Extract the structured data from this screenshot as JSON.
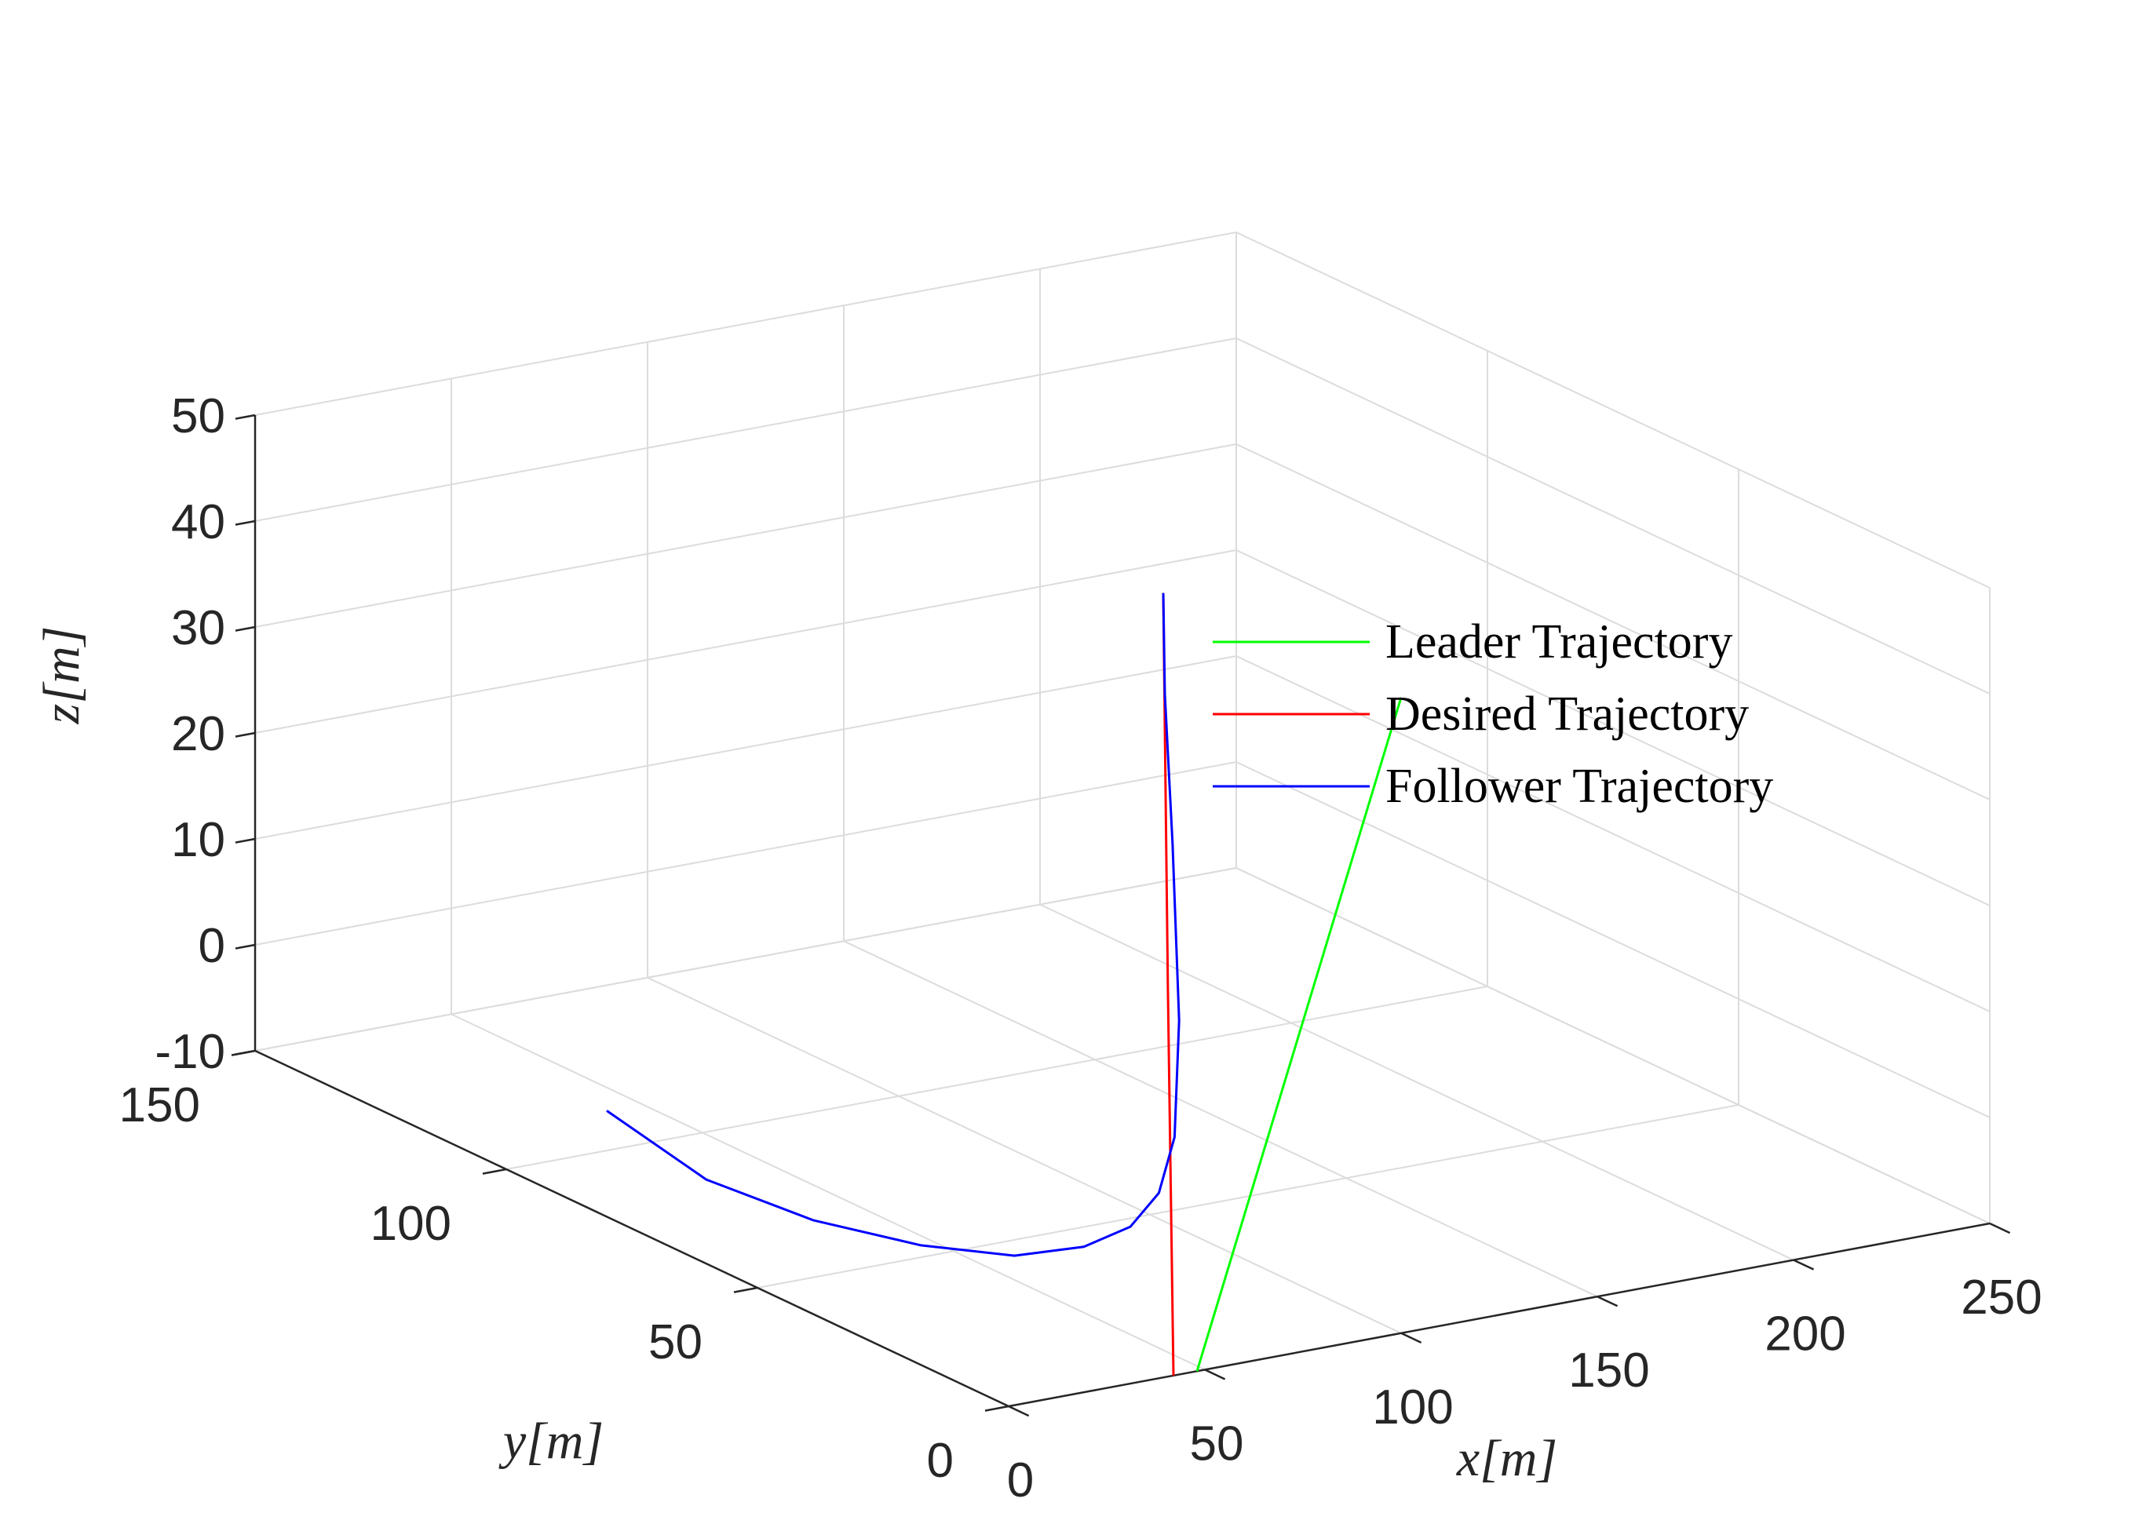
{
  "chart_data": {
    "type": "line",
    "title": "",
    "xlabel": "x[m]",
    "ylabel": "y[m]",
    "zlabel": "z[m]",
    "xlim": [
      0,
      250
    ],
    "ylim": [
      0,
      150
    ],
    "zlim": [
      -10,
      50
    ],
    "grid": true,
    "legend_placement": "center-right",
    "x_ticks": [
      "0",
      "50",
      "100",
      "150",
      "200",
      "250"
    ],
    "y_ticks": [
      "0",
      "50",
      "100",
      "150"
    ],
    "z_ticks": [
      "-10",
      "0",
      "10",
      "20",
      "30",
      "40",
      "50"
    ],
    "series": [
      {
        "name": "Leader Trajectory",
        "color": "#00ff00",
        "x": [
          48,
          100
        ],
        "y": [
          0,
          0
        ],
        "z": [
          -10,
          50
        ]
      },
      {
        "name": "Desired Trajectory",
        "color": "#ff0000",
        "x": [
          42,
          70,
          97
        ],
        "y": [
          0,
          23,
          45
        ],
        "z": [
          -10,
          20,
          50
        ]
      },
      {
        "name": "Follower Trajectory",
        "color": "#0000ff",
        "x": [
          0,
          10,
          22,
          34,
          45,
          55,
          63,
          69,
          73,
          78,
          84,
          91,
          97
        ],
        "y": [
          80,
          68,
          56,
          44,
          34,
          28,
          25,
          24,
          24,
          27,
          33,
          40,
          45
        ],
        "z": [
          0,
          -4.5,
          -6.5,
          -7,
          -6.5,
          -5,
          -3,
          0,
          5,
          15,
          30,
          42,
          50
        ]
      }
    ]
  }
}
